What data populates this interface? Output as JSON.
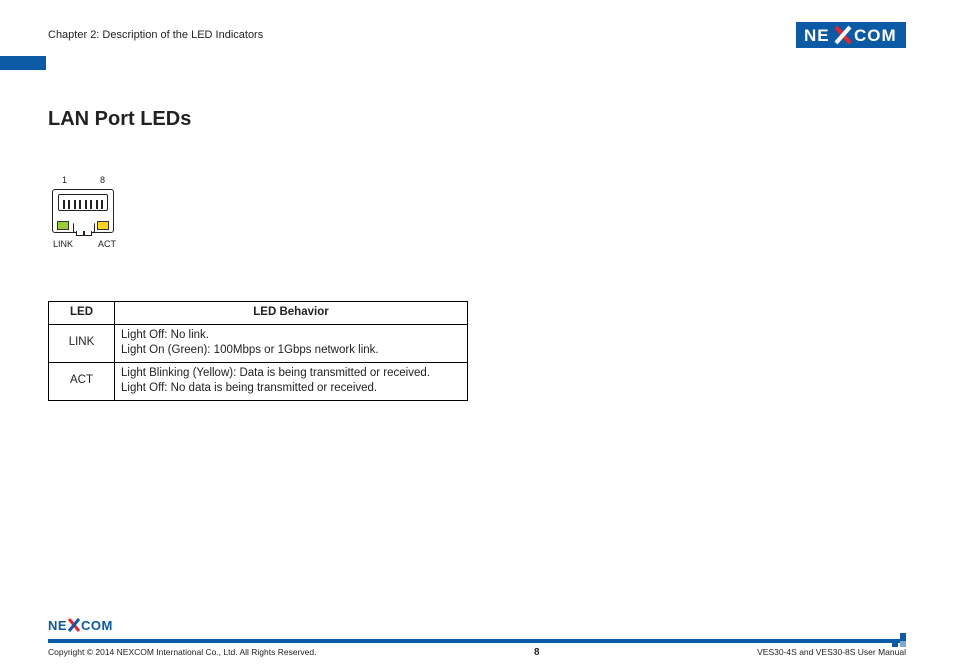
{
  "header": {
    "chapter": "Chapter 2: Description of the LED Indicators",
    "logo_text_left": "NE",
    "logo_text_right": "COM",
    "logo_bg": "#0a5aa6",
    "logo_text_color": "#ffffff",
    "logo_x_color": "#e9242b"
  },
  "section": {
    "title": "LAN Port LEDs"
  },
  "diagram": {
    "pin_left": "1",
    "pin_right": "8",
    "link_label": "LINK",
    "act_label": "ACT",
    "link_led_color": "#9acd32",
    "act_led_color": "#ffd21e"
  },
  "table": {
    "col1": "LED",
    "col2": "LED Behavior",
    "rows": [
      {
        "led": "LINK",
        "behavior": "Light Off: No link.\nLight On (Green): 100Mbps or 1Gbps network link."
      },
      {
        "led": "ACT",
        "behavior": "Light Blinking (Yellow): Data is being transmitted or received.\nLight Off: No data is being transmitted or received."
      }
    ]
  },
  "footer": {
    "copyright": "Copyright © 2014 NEXCOM International Co., Ltd. All Rights Reserved.",
    "page": "8",
    "manual": "VES30-4S and VES30-8S User Manual"
  }
}
